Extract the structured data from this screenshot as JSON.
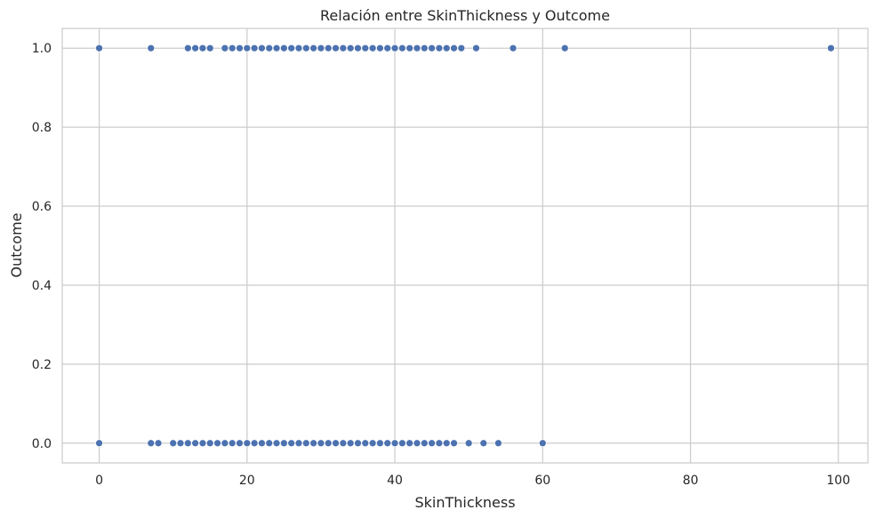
{
  "chart_data": {
    "type": "scatter",
    "title": "Relación entre SkinThickness y Outcome",
    "xlabel": "SkinThickness",
    "ylabel": "Outcome",
    "xlim": [
      -5,
      104
    ],
    "ylim": [
      -0.05,
      1.05
    ],
    "x_ticks": [
      0,
      20,
      40,
      60,
      80,
      100
    ],
    "y_ticks": [
      0.0,
      0.2,
      0.4,
      0.6,
      0.8,
      1.0
    ],
    "grid": true,
    "point_color": "#4c72b0",
    "grid_color": "#cccccc",
    "series": [
      {
        "outcome": 1,
        "x": [
          0,
          7,
          12,
          13,
          14,
          15,
          17,
          18,
          19,
          20,
          21,
          22,
          23,
          24,
          25,
          26,
          27,
          28,
          29,
          30,
          31,
          32,
          33,
          34,
          35,
          36,
          37,
          38,
          39,
          40,
          41,
          42,
          43,
          44,
          45,
          46,
          47,
          48,
          49,
          51,
          56,
          63,
          99
        ]
      },
      {
        "outcome": 0,
        "x": [
          0,
          7,
          8,
          10,
          11,
          12,
          13,
          14,
          15,
          16,
          17,
          18,
          19,
          20,
          21,
          22,
          23,
          24,
          25,
          26,
          27,
          28,
          29,
          30,
          31,
          32,
          33,
          34,
          35,
          36,
          37,
          38,
          39,
          40,
          41,
          42,
          43,
          44,
          45,
          46,
          47,
          48,
          50,
          52,
          54,
          60
        ]
      }
    ]
  }
}
